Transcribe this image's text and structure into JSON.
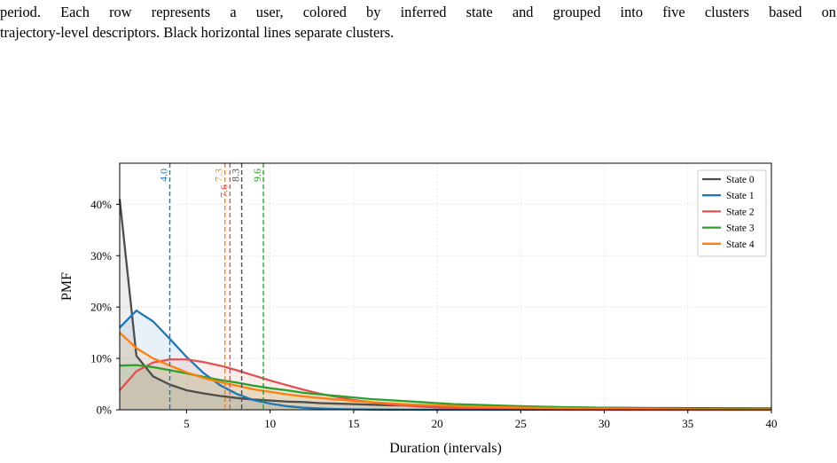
{
  "caption": {
    "line1": "period.  Each row represents a user, colored by inferred state and grouped into five clusters based on",
    "line2": "trajectory-level descriptors. Black horizontal lines separate clusters."
  },
  "chart_data": {
    "type": "line",
    "xlabel": "Duration (intervals)",
    "ylabel": "PMF",
    "xlim": [
      1,
      40
    ],
    "ylim": [
      0,
      48
    ],
    "xticks": [
      5,
      10,
      15,
      20,
      25,
      30,
      35,
      40
    ],
    "yticks": [
      0,
      10,
      20,
      30,
      40
    ],
    "ytick_labels": [
      "0%",
      "10%",
      "20%",
      "30%",
      "40%"
    ],
    "grid": true,
    "legend_position": "top-right",
    "x": [
      1,
      2,
      3,
      4,
      5,
      6,
      7,
      8,
      9,
      10,
      11,
      12,
      13,
      14,
      15,
      16,
      17,
      18,
      19,
      20,
      21,
      22,
      23,
      24,
      25,
      26,
      27,
      28,
      29,
      30,
      31,
      32,
      33,
      34,
      35,
      36,
      37,
      38,
      39,
      40
    ],
    "series": [
      {
        "name": "State 0",
        "color": "#4d4d4d",
        "mean": 8.3,
        "mean_label": "8.3",
        "values": [
          41.0,
          10.5,
          6.5,
          4.9,
          3.8,
          3.2,
          2.7,
          2.3,
          2.0,
          1.8,
          1.6,
          1.5,
          1.3,
          1.2,
          1.1,
          1.0,
          0.9,
          0.85,
          0.8,
          0.75,
          0.7,
          0.65,
          0.6,
          0.57,
          0.54,
          0.51,
          0.48,
          0.45,
          0.43,
          0.41,
          0.39,
          0.37,
          0.35,
          0.34,
          0.32,
          0.31,
          0.3,
          0.29,
          0.28,
          0.27
        ]
      },
      {
        "name": "State 1",
        "color": "#1f77b4",
        "mean": 4.0,
        "mean_label": "4.0",
        "values": [
          16.0,
          19.3,
          17.2,
          13.8,
          10.3,
          7.2,
          4.8,
          3.1,
          1.9,
          1.2,
          0.7,
          0.4,
          0.25,
          0.15,
          0.09,
          0.05,
          0.03,
          0.02,
          0.01,
          0.01,
          0,
          0,
          0,
          0,
          0,
          0,
          0,
          0,
          0,
          0,
          0,
          0,
          0,
          0,
          0,
          0,
          0,
          0,
          0,
          0
        ]
      },
      {
        "name": "State 2",
        "color": "#e05252",
        "mean": 7.6,
        "mean_label": "7.6",
        "values": [
          3.8,
          7.5,
          9.2,
          9.8,
          9.8,
          9.3,
          8.6,
          7.7,
          6.7,
          5.7,
          4.8,
          3.9,
          3.1,
          2.5,
          1.9,
          1.5,
          1.1,
          0.85,
          0.62,
          0.45,
          0.33,
          0.24,
          0.17,
          0.12,
          0.09,
          0.06,
          0.04,
          0.03,
          0.02,
          0.01,
          0.01,
          0,
          0,
          0,
          0,
          0,
          0,
          0,
          0,
          0
        ]
      },
      {
        "name": "State 3",
        "color": "#2ca02c",
        "mean": 9.6,
        "mean_label": "9.6",
        "values": [
          8.6,
          8.7,
          8.3,
          7.7,
          7.1,
          6.4,
          5.8,
          5.3,
          4.7,
          4.2,
          3.8,
          3.3,
          3.0,
          2.7,
          2.4,
          2.1,
          1.9,
          1.7,
          1.5,
          1.3,
          1.1,
          1.0,
          0.9,
          0.8,
          0.7,
          0.62,
          0.55,
          0.49,
          0.44,
          0.39,
          0.35,
          0.31,
          0.28,
          0.25,
          0.22,
          0.2,
          0.18,
          0.16,
          0.14,
          0.12
        ]
      },
      {
        "name": "State 4",
        "color": "#ff7f0e",
        "mean": 7.3,
        "mean_label": "7.3",
        "values": [
          15.0,
          12.0,
          10.0,
          8.6,
          7.3,
          6.2,
          5.4,
          4.7,
          4.0,
          3.5,
          3.0,
          2.6,
          2.3,
          2.0,
          1.7,
          1.5,
          1.3,
          1.12,
          0.97,
          0.85,
          0.74,
          0.64,
          0.56,
          0.49,
          0.42,
          0.37,
          0.32,
          0.28,
          0.24,
          0.21,
          0.18,
          0.16,
          0.14,
          0.12,
          0.1,
          0.09,
          0.08,
          0.07,
          0.06,
          0.05
        ]
      }
    ]
  }
}
